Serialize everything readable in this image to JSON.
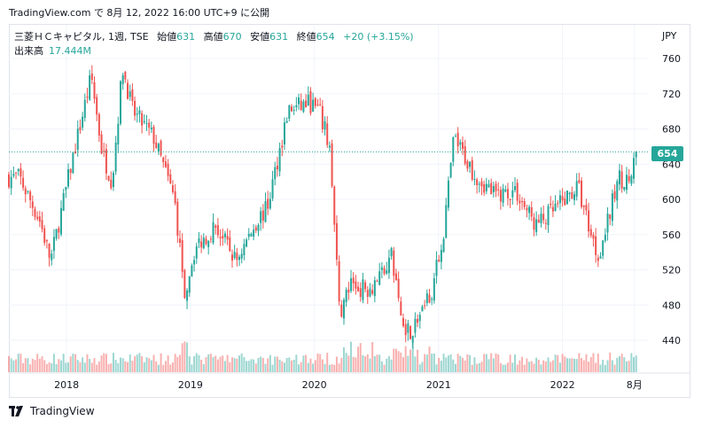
{
  "published": "TradingView.com で 8月 12, 2022 16:00 UTC+9 に公開",
  "legend": {
    "symbol": "三菱ＨＣキャピタル, 1週, TSE",
    "open_label": "始値",
    "open": "631",
    "high_label": "高値",
    "high": "670",
    "low_label": "安値",
    "low": "631",
    "close_label": "終値",
    "close": "654",
    "change": "+20 (+3.15%)"
  },
  "volume": {
    "label": "出来高",
    "value": "17.444M"
  },
  "currency": "JPY",
  "last_price_label": "654",
  "footer": {
    "brand": "TradingView"
  },
  "colors": {
    "up": "#26a69a",
    "down": "#ef5350",
    "grid": "#f0f3fa"
  },
  "chart_data": {
    "type": "candlestick",
    "y_ticks": [
      "760",
      "720",
      "680",
      "640",
      "600",
      "560",
      "520",
      "480",
      "440"
    ],
    "x_ticks": [
      "2018",
      "2019",
      "2020",
      "2021",
      "2022",
      "8月"
    ],
    "ylim": [
      410,
      770
    ],
    "last_price": 654,
    "series_path": [
      [
        "2017-08",
        625
      ],
      [
        "2017-10",
        575
      ],
      [
        "2017-11",
        530
      ],
      [
        "2018-01",
        640
      ],
      [
        "2018-03",
        740
      ],
      [
        "2018-04",
        655
      ],
      [
        "2018-05",
        620
      ],
      [
        "2018-06",
        750
      ],
      [
        "2018-07",
        700
      ],
      [
        "2018-09",
        670
      ],
      [
        "2018-11",
        600
      ],
      [
        "2018-12",
        495
      ],
      [
        "2019-01",
        545
      ],
      [
        "2019-03",
        570
      ],
      [
        "2019-05",
        530
      ],
      [
        "2019-07",
        575
      ],
      [
        "2019-08",
        590
      ],
      [
        "2019-10",
        700
      ],
      [
        "2019-12",
        710
      ],
      [
        "2020-01",
        700
      ],
      [
        "2020-02",
        660
      ],
      [
        "2020-03",
        470
      ],
      [
        "2020-04",
        500
      ],
      [
        "2020-06",
        500
      ],
      [
        "2020-08",
        535
      ],
      [
        "2020-09",
        460
      ],
      [
        "2020-10",
        450
      ],
      [
        "2020-12",
        500
      ],
      [
        "2021-01",
        560
      ],
      [
        "2021-02",
        670
      ],
      [
        "2021-04",
        630
      ],
      [
        "2021-06",
        605
      ],
      [
        "2021-08",
        610
      ],
      [
        "2021-10",
        570
      ],
      [
        "2021-12",
        590
      ],
      [
        "2022-02",
        615
      ],
      [
        "2022-04",
        535
      ],
      [
        "2022-05",
        575
      ],
      [
        "2022-06",
        625
      ],
      [
        "2022-07",
        620
      ],
      [
        "2022-08",
        654
      ]
    ]
  }
}
